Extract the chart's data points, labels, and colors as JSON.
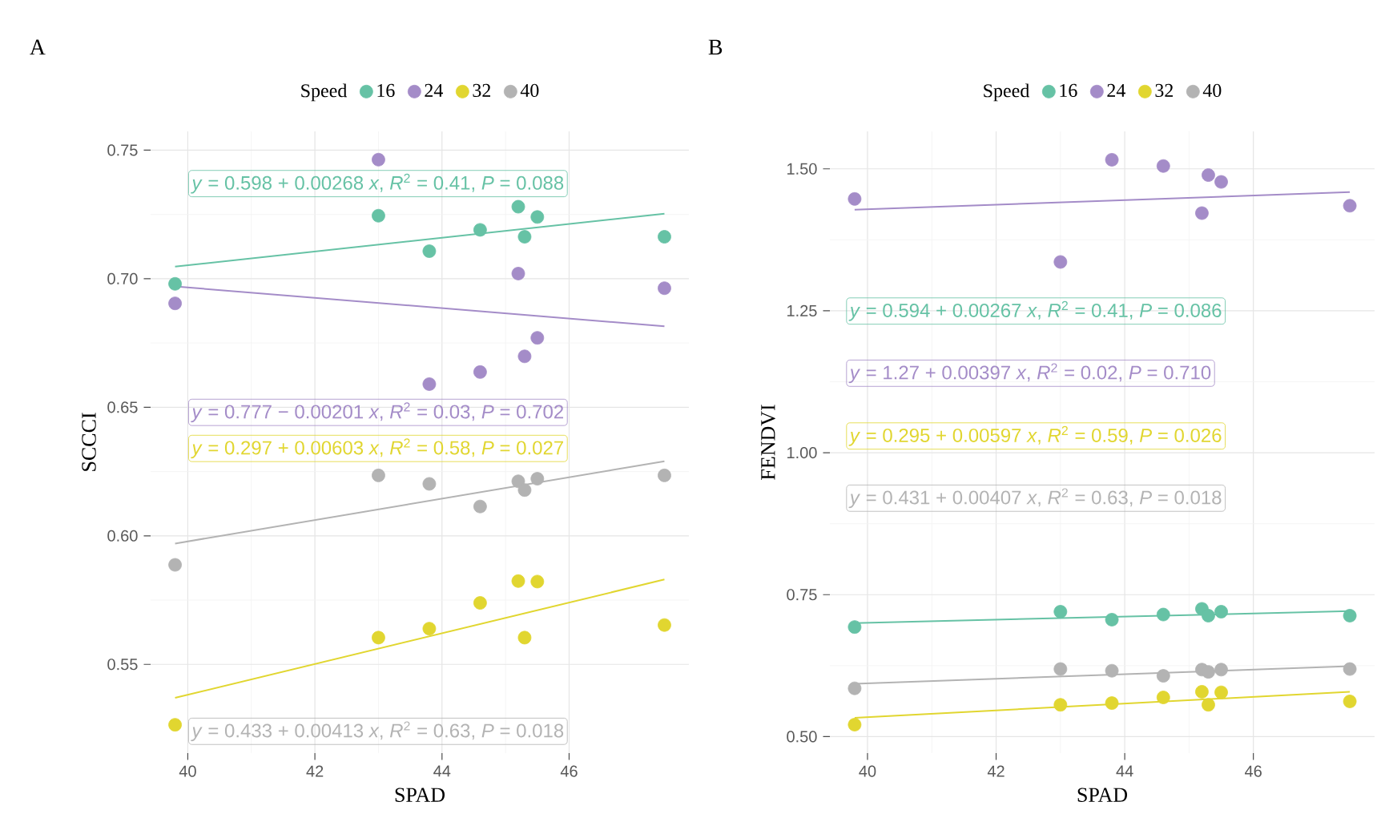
{
  "chart_data": [
    {
      "type": "scatter",
      "title": "A",
      "xlabel": "SPAD",
      "ylabel": "SCCCI",
      "legend_title": "Speed",
      "grid": true,
      "legend": "top",
      "xlim": [
        39.415,
        47.885
      ],
      "ylim": [
        0.5155,
        0.7573
      ],
      "xticks": [
        40,
        42,
        44,
        46
      ],
      "yticks": [
        0.55,
        {
          "value": 0.6,
          "label": "0.60"
        },
        0.65,
        {
          "value": 0.7,
          "label": "0.70"
        },
        0.75
      ],
      "annotations": [
        "*y* = 0.598 + 0.00268 *x*, *R*$^{2}$ = 0.41, *P* = 0.088",
        "*y* = 0.777 − 0.00201 *x*, *R*$^{2}$ = 0.03, *P* = 0.702",
        "*y* = 0.297 + 0.00603 *x*, *R*$^{2}$ = 0.58, *P* = 0.027",
        "*y* = 0.433 + 0.00413 *x*, *R*$^{2}$ = 0.63, *P* = 0.018"
      ],
      "series": [
        {
          "name": "16",
          "color": "#66c2a5",
          "marker": "circle",
          "x": [
            39.8,
            43.0,
            43.8,
            44.6,
            45.2,
            45.3,
            45.5,
            47.5
          ],
          "values": [
            0.698,
            0.7245,
            0.7107,
            0.719,
            0.728,
            0.7163,
            0.724,
            0.7163
          ]
        },
        {
          "name": "24",
          "color": "#a48cc8",
          "marker": "circle",
          "x": [
            39.8,
            43.0,
            43.8,
            44.6,
            45.2,
            45.3,
            45.5,
            47.5
          ],
          "values": [
            0.6904,
            0.7463,
            0.659,
            0.6637,
            0.702,
            0.6698,
            0.677,
            0.6963
          ]
        },
        {
          "name": "32",
          "color": "#e1d630",
          "marker": "circle",
          "x": [
            39.8,
            43.0,
            43.8,
            44.6,
            45.2,
            45.3,
            45.5,
            47.5
          ],
          "values": [
            0.5265,
            0.5604,
            0.5639,
            0.5739,
            0.5824,
            0.5604,
            0.5822,
            0.5653
          ]
        },
        {
          "name": "40",
          "color": "#b3b3b3",
          "marker": "circle",
          "x": [
            39.8,
            43.0,
            43.8,
            44.6,
            45.2,
            45.3,
            45.5,
            47.5
          ],
          "values": [
            0.5887,
            0.6235,
            0.6202,
            0.6114,
            0.6212,
            0.6178,
            0.6222,
            0.6235
          ]
        },
        {
          "type": "line",
          "color": "#66c2a5",
          "marker": "none",
          "x": [
            39.8,
            47.5
          ],
          "values": [
            0.7047,
            0.7253
          ]
        },
        {
          "type": "line",
          "color": "#a48cc8",
          "marker": "none",
          "x": [
            39.8,
            47.5
          ],
          "values": [
            0.697,
            0.6815
          ]
        },
        {
          "type": "line",
          "color": "#e1d630",
          "marker": "none",
          "x": [
            39.8,
            47.5
          ],
          "values": [
            0.537,
            0.583
          ]
        },
        {
          "type": "line",
          "color": "#b3b3b3",
          "marker": "none",
          "x": [
            39.8,
            47.5
          ],
          "values": [
            0.597,
            0.629
          ]
        }
      ]
    },
    {
      "type": "scatter",
      "title": "B",
      "xlabel": "SPAD",
      "ylabel": "FENDVI",
      "legend_title": "Speed",
      "grid": true,
      "legend": "top",
      "xlim": [
        39.415,
        47.885
      ],
      "ylim": [
        0.471,
        1.566
      ],
      "xticks": [
        40,
        42,
        44,
        46
      ],
      "yticks": [
        {
          "value": 0.5,
          "label": "0.50"
        },
        0.75,
        {
          "value": 1,
          "label": "1.00"
        },
        1.25,
        {
          "value": 1.5,
          "label": "1.50"
        }
      ],
      "annotations": [
        "*y* = 0.594 + 0.00267 *x*, *R*$^{2}$ = 0.41, *P* = 0.086",
        "*y* = 1.27 + 0.00397 *x*, *R*$^{2}$ = 0.02, *P* = 0.710",
        "*y* = 0.295 + 0.00597 *x*, *R*$^{2}$ = 0.59, *P* = 0.026",
        "*y* = 0.431 + 0.00407 *x*, *R*$^{2}$ = 0.63, *P* = 0.018"
      ],
      "series": [
        {
          "name": "16",
          "color": "#66c2a5",
          "marker": "circle",
          "x": [
            39.8,
            43.0,
            43.8,
            44.6,
            45.2,
            45.3,
            45.5,
            47.5
          ],
          "values": [
            0.693,
            0.72,
            0.706,
            0.715,
            0.725,
            0.713,
            0.72,
            0.713
          ]
        },
        {
          "name": "24",
          "color": "#a48cc8",
          "marker": "circle",
          "x": [
            39.8,
            43.0,
            43.8,
            44.6,
            45.2,
            45.3,
            45.5,
            47.5
          ],
          "values": [
            1.447,
            1.336,
            1.516,
            1.505,
            1.422,
            1.489,
            1.477,
            1.435
          ]
        },
        {
          "name": "32",
          "color": "#e1d630",
          "marker": "circle",
          "x": [
            39.8,
            43.0,
            43.8,
            44.6,
            45.2,
            45.3,
            45.5,
            47.5
          ],
          "values": [
            0.521,
            0.556,
            0.559,
            0.569,
            0.579,
            0.556,
            0.578,
            0.562
          ]
        },
        {
          "name": "40",
          "color": "#b3b3b3",
          "marker": "circle",
          "x": [
            39.8,
            43.0,
            43.8,
            44.6,
            45.2,
            45.3,
            45.5,
            47.5
          ],
          "values": [
            0.585,
            0.619,
            0.616,
            0.607,
            0.618,
            0.614,
            0.618,
            0.619
          ]
        },
        {
          "type": "line",
          "color": "#66c2a5",
          "marker": "none",
          "x": [
            39.8,
            47.5
          ],
          "values": [
            0.7,
            0.721
          ]
        },
        {
          "type": "line",
          "color": "#a48cc8",
          "marker": "none",
          "x": [
            39.8,
            47.5
          ],
          "values": [
            1.428,
            1.459
          ]
        },
        {
          "type": "line",
          "color": "#e1d630",
          "marker": "none",
          "x": [
            39.8,
            47.5
          ],
          "values": [
            0.533,
            0.579
          ]
        },
        {
          "type": "line",
          "color": "#b3b3b3",
          "marker": "none",
          "x": [
            39.8,
            47.5
          ],
          "values": [
            0.593,
            0.624
          ]
        }
      ]
    }
  ]
}
